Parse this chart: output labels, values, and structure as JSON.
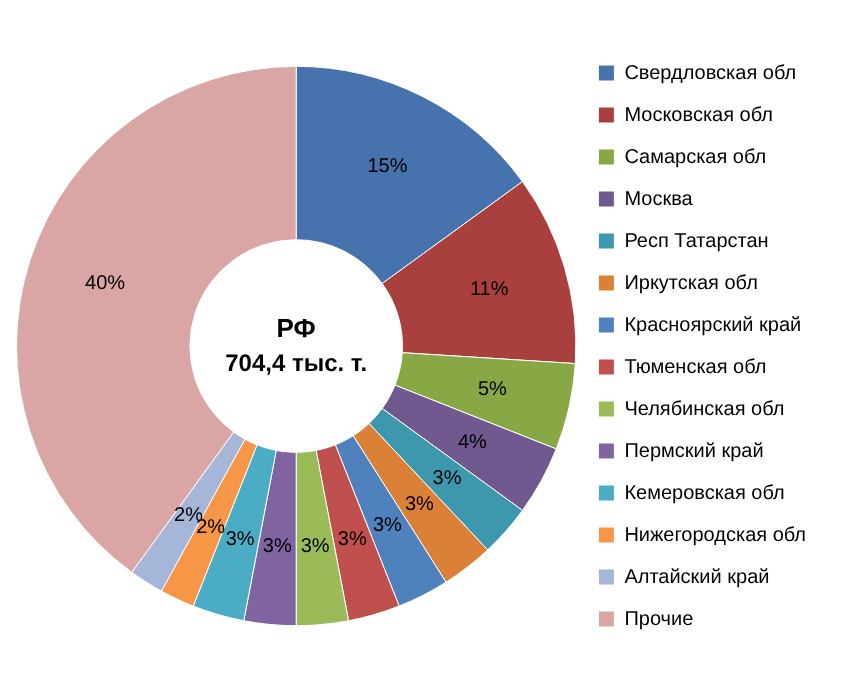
{
  "chart_data": {
    "type": "donut",
    "title": "РФ",
    "subtitle": "704,4 тыс. т.",
    "categories": [
      "Свердловская обл",
      "Московская обл",
      "Самарская обл",
      "Москва",
      "Респ Татарстан",
      "Иркутская обл",
      "Красноярский край",
      "Тюменская обл",
      "Челябинская обл",
      "Пермский край",
      "Кемеровская обл",
      "Нижегородская обл",
      "Алтайский край",
      "Прочие"
    ],
    "values": [
      15,
      11,
      5,
      4,
      3,
      3,
      3,
      3,
      3,
      3,
      3,
      2,
      2,
      40
    ],
    "colors": [
      "#4672ae",
      "#a9403d",
      "#88a745",
      "#71588f",
      "#3d98ae",
      "#da8137",
      "#4f81bd",
      "#c0504d",
      "#9bbb59",
      "#8064a2",
      "#4bacc6",
      "#f79646",
      "#a5b6d8",
      "#d9a6a5"
    ],
    "value_labels": [
      "15%",
      "11%",
      "5%",
      "4%",
      "3%",
      "3%",
      "3%",
      "3%",
      "3%",
      "3%",
      "3%",
      "2%",
      "2%",
      "40%"
    ],
    "legend": "right"
  }
}
